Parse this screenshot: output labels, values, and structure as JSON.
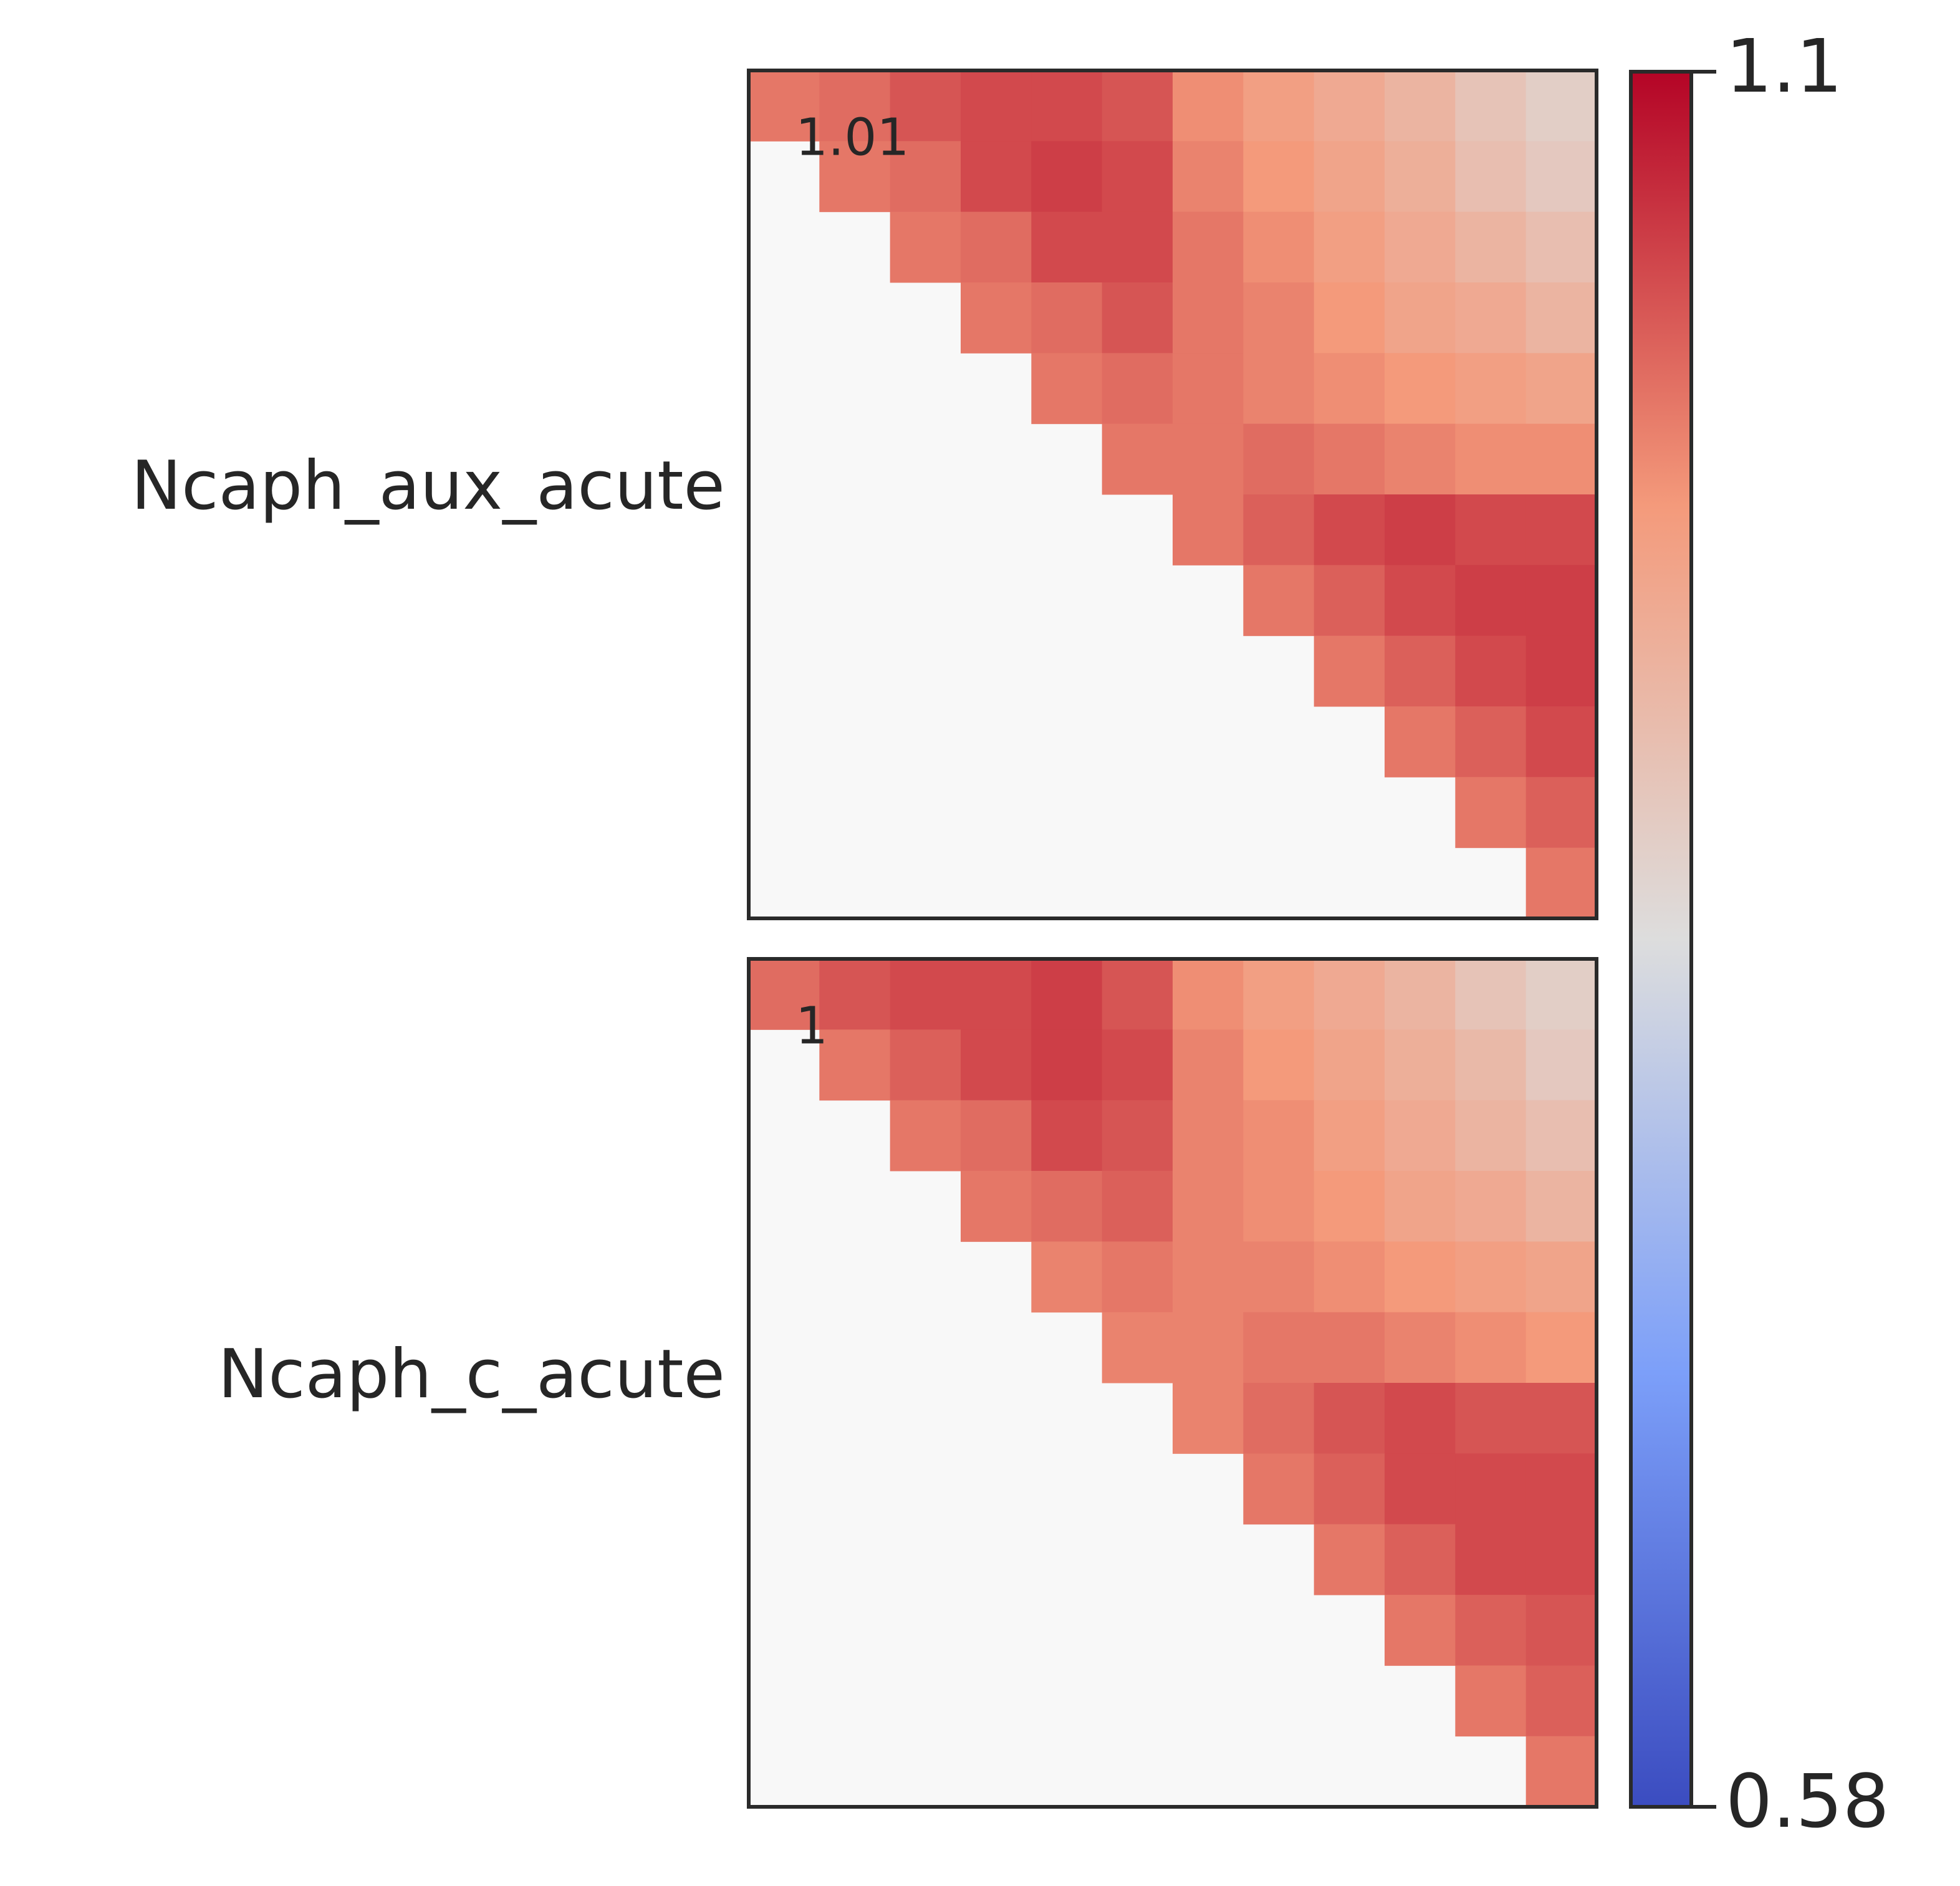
{
  "chart_data": {
    "type": "heatmap",
    "colormap": "coolwarm",
    "zlim": [
      0.58,
      1.1
    ],
    "zticks": [
      0.58,
      1.1
    ],
    "panels": [
      {
        "label": "Ncaph_aux_acute",
        "annotation": 1.01,
        "values": [
          [
            1.0,
            1.01,
            1.03,
            1.04,
            1.04,
            1.03,
            0.98,
            0.96,
            0.94,
            0.92,
            0.89,
            0.87
          ],
          [
            null,
            1.0,
            1.01,
            1.04,
            1.05,
            1.04,
            0.99,
            0.97,
            0.95,
            0.93,
            0.9,
            0.88
          ],
          [
            null,
            null,
            1.0,
            1.01,
            1.04,
            1.04,
            1.0,
            0.98,
            0.96,
            0.94,
            0.92,
            0.9
          ],
          [
            null,
            null,
            null,
            1.0,
            1.01,
            1.03,
            1.0,
            0.99,
            0.97,
            0.95,
            0.94,
            0.92
          ],
          [
            null,
            null,
            null,
            null,
            1.0,
            1.01,
            1.0,
            0.99,
            0.98,
            0.97,
            0.96,
            0.95
          ],
          [
            null,
            null,
            null,
            null,
            null,
            1.0,
            1.0,
            1.01,
            1.0,
            0.99,
            0.98,
            0.98
          ],
          [
            null,
            null,
            null,
            null,
            null,
            null,
            1.0,
            1.02,
            1.04,
            1.05,
            1.04,
            1.04
          ],
          [
            null,
            null,
            null,
            null,
            null,
            null,
            null,
            1.0,
            1.02,
            1.04,
            1.05,
            1.05
          ],
          [
            null,
            null,
            null,
            null,
            null,
            null,
            null,
            null,
            1.0,
            1.02,
            1.04,
            1.05
          ],
          [
            null,
            null,
            null,
            null,
            null,
            null,
            null,
            null,
            null,
            1.0,
            1.02,
            1.04
          ],
          [
            null,
            null,
            null,
            null,
            null,
            null,
            null,
            null,
            null,
            null,
            1.0,
            1.02
          ],
          [
            null,
            null,
            null,
            null,
            null,
            null,
            null,
            null,
            null,
            null,
            null,
            1.0
          ]
        ]
      },
      {
        "label": "Ncaph_c_acute",
        "annotation": 1,
        "values": [
          [
            1.01,
            1.03,
            1.04,
            1.04,
            1.05,
            1.03,
            0.98,
            0.96,
            0.94,
            0.92,
            0.89,
            0.87
          ],
          [
            null,
            1.0,
            1.02,
            1.04,
            1.05,
            1.04,
            0.99,
            0.97,
            0.95,
            0.93,
            0.91,
            0.88
          ],
          [
            null,
            null,
            1.0,
            1.01,
            1.04,
            1.03,
            0.99,
            0.98,
            0.96,
            0.94,
            0.92,
            0.9
          ],
          [
            null,
            null,
            null,
            1.0,
            1.01,
            1.02,
            0.99,
            0.98,
            0.97,
            0.95,
            0.94,
            0.92
          ],
          [
            null,
            null,
            null,
            null,
            0.99,
            1.0,
            0.99,
            0.99,
            0.98,
            0.97,
            0.96,
            0.95
          ],
          [
            null,
            null,
            null,
            null,
            null,
            0.99,
            0.99,
            1.0,
            1.0,
            0.99,
            0.98,
            0.97
          ],
          [
            null,
            null,
            null,
            null,
            null,
            null,
            0.99,
            1.01,
            1.03,
            1.04,
            1.03,
            1.03
          ],
          [
            null,
            null,
            null,
            null,
            null,
            null,
            null,
            1.0,
            1.02,
            1.04,
            1.04,
            1.04
          ],
          [
            null,
            null,
            null,
            null,
            null,
            null,
            null,
            null,
            1.0,
            1.02,
            1.04,
            1.04
          ],
          [
            null,
            null,
            null,
            null,
            null,
            null,
            null,
            null,
            null,
            1.0,
            1.02,
            1.03
          ],
          [
            null,
            null,
            null,
            null,
            null,
            null,
            null,
            null,
            null,
            null,
            1.0,
            1.02
          ],
          [
            null,
            null,
            null,
            null,
            null,
            null,
            null,
            null,
            null,
            null,
            null,
            1.0
          ]
        ]
      }
    ]
  }
}
